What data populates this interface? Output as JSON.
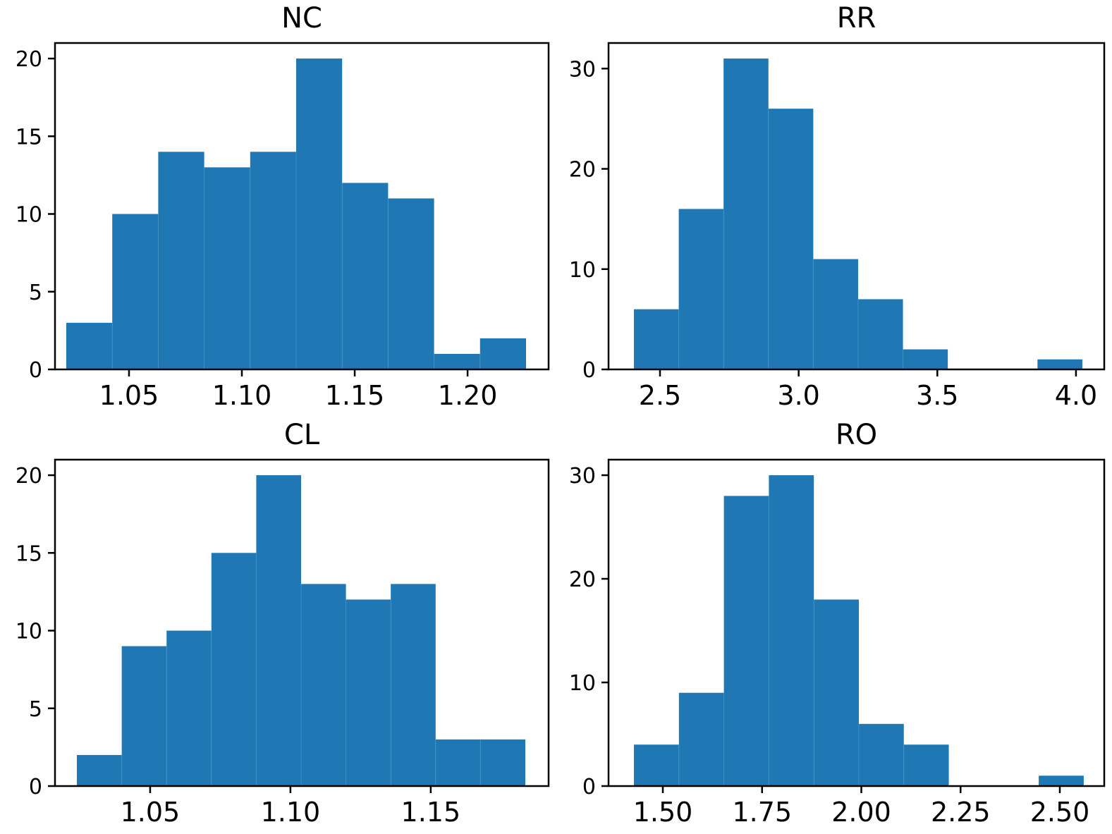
{
  "figure": {
    "background": "#ffffff",
    "bar_color": "#1f77b4",
    "bar_seam_color": "#5a9ec9",
    "axis_color": "#000000",
    "text_color": "#000000"
  },
  "chart_data": [
    {
      "id": "nc",
      "type": "bar",
      "kind": "histogram",
      "title": "NC",
      "xlabel": "",
      "ylabel": "",
      "bin_start": 1.0222,
      "bin_width": 0.02037,
      "values": [
        3,
        10,
        14,
        13,
        14,
        20,
        12,
        11,
        1,
        2
      ],
      "xlim": [
        1.0172,
        1.2359
      ],
      "ylim": [
        0,
        21
      ],
      "xticks": [
        1.05,
        1.1,
        1.15,
        1.2
      ],
      "xtick_labels": [
        "1.05",
        "1.10",
        "1.15",
        "1.20"
      ],
      "yticks": [
        0,
        5,
        10,
        15,
        20
      ],
      "ytick_labels": [
        "0",
        "5",
        "10",
        "15",
        "20"
      ],
      "grid": false,
      "legend": null
    },
    {
      "id": "rr",
      "type": "bar",
      "kind": "histogram",
      "title": "RR",
      "xlabel": "",
      "ylabel": "",
      "bin_start": 2.4059,
      "bin_width": 0.1617,
      "values": [
        6,
        16,
        31,
        26,
        11,
        7,
        2,
        0,
        0,
        1
      ],
      "xlim": [
        2.3144,
        4.1019
      ],
      "ylim": [
        0,
        32.55
      ],
      "xticks": [
        2.5,
        3.0,
        3.5,
        4.0
      ],
      "xtick_labels": [
        "2.5",
        "3.0",
        "3.5",
        "4.0"
      ],
      "yticks": [
        0,
        10,
        20,
        30
      ],
      "ytick_labels": [
        "0",
        "10",
        "20",
        "30"
      ],
      "grid": false,
      "legend": null
    },
    {
      "id": "cl",
      "type": "bar",
      "kind": "histogram",
      "title": "CL",
      "xlabel": "",
      "ylabel": "",
      "bin_start": 1.0239,
      "bin_width": 0.01598,
      "values": [
        2,
        9,
        10,
        15,
        20,
        13,
        12,
        13,
        3,
        3
      ],
      "xlim": [
        1.0161,
        1.192
      ],
      "ylim": [
        0,
        21
      ],
      "xticks": [
        1.05,
        1.1,
        1.15
      ],
      "xtick_labels": [
        "1.05",
        "1.10",
        "1.15"
      ],
      "yticks": [
        0,
        5,
        10,
        15,
        20
      ],
      "ytick_labels": [
        "0",
        "5",
        "10",
        "15",
        "20"
      ],
      "grid": false,
      "legend": null
    },
    {
      "id": "ro",
      "type": "bar",
      "kind": "histogram",
      "title": "RO",
      "xlabel": "",
      "ylabel": "",
      "bin_start": 1.4272,
      "bin_width": 0.1133,
      "values": [
        4,
        9,
        28,
        30,
        18,
        6,
        4,
        0,
        0,
        1
      ],
      "xlim": [
        1.3632,
        2.6119
      ],
      "ylim": [
        0,
        31.5
      ],
      "xticks": [
        1.5,
        1.75,
        2.0,
        2.25,
        2.5
      ],
      "xtick_labels": [
        "1.50",
        "1.75",
        "2.00",
        "2.25",
        "2.50"
      ],
      "yticks": [
        0,
        10,
        20,
        30
      ],
      "ytick_labels": [
        "0",
        "10",
        "20",
        "30"
      ],
      "grid": false,
      "legend": null
    }
  ]
}
